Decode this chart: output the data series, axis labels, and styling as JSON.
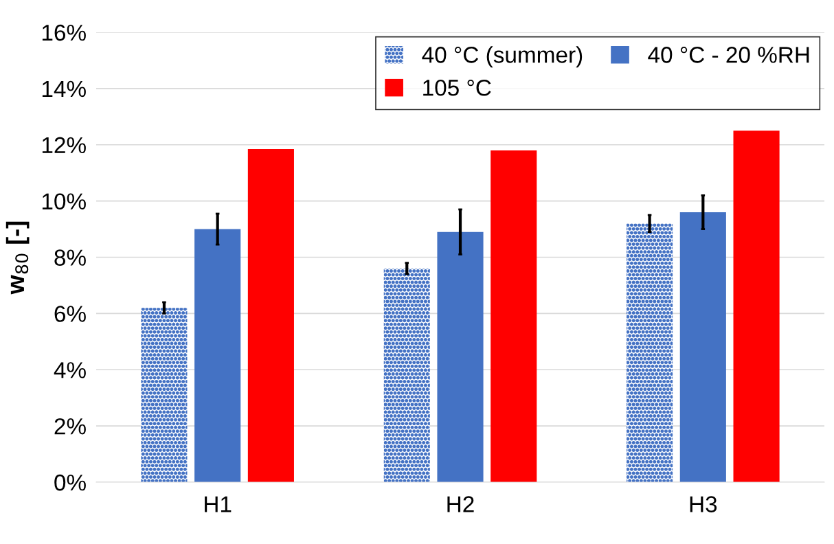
{
  "chart_data": {
    "type": "bar",
    "ylabel": "w$_{80}$ [-]",
    "categories": [
      "H1",
      "H2",
      "H3"
    ],
    "series": [
      {
        "name": "40 °C (summer)",
        "color": "#4472c4",
        "values": [
          6.2,
          7.6,
          9.2
        ],
        "errors": [
          0.2,
          0.2,
          0.3
        ]
      },
      {
        "name": "40 °C - 20 %RH",
        "color": "#4472c4",
        "values": [
          9.0,
          8.9,
          9.6
        ],
        "errors": [
          0.55,
          0.8,
          0.6
        ]
      },
      {
        "name": "105 °C",
        "color": "#ff0000",
        "values": [
          11.85,
          11.8,
          12.5
        ]
      }
    ],
    "ylim": [
      0,
      16
    ],
    "yticks": [
      {
        "value": 0,
        "label": "0%"
      },
      {
        "value": 2,
        "label": "2%"
      },
      {
        "value": 4,
        "label": "4%"
      },
      {
        "value": 6,
        "label": "6%"
      },
      {
        "value": 8,
        "label": "8%"
      },
      {
        "value": 10,
        "label": "10%"
      },
      {
        "value": 12,
        "label": "12%"
      },
      {
        "value": 14,
        "label": "14%"
      },
      {
        "value": 16,
        "label": "16%"
      }
    ],
    "grid": "y",
    "legend": "top right"
  }
}
